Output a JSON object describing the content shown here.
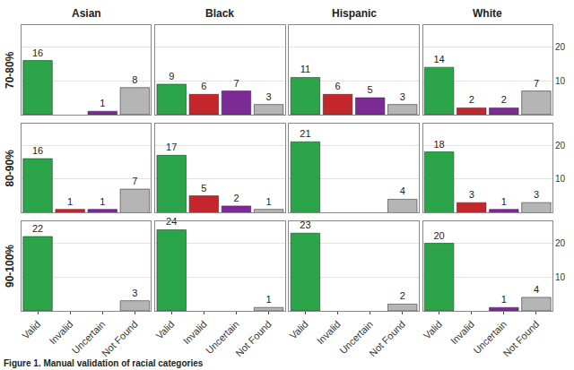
{
  "chart_data": {
    "type": "bar",
    "caption": "Figure 1. Manual validation of racial categories",
    "facet_columns": [
      "Asian",
      "Black",
      "Hispanic",
      "White"
    ],
    "facet_rows": [
      "70-80%",
      "80-90%",
      "90-100%"
    ],
    "categories": [
      "Valid",
      "Invalid",
      "Uncertain",
      "Not Found"
    ],
    "colors": [
      "#2ca54a",
      "#c3262b",
      "#7b2a96",
      "#b5b5b5"
    ],
    "panels": [
      [
        [
          16,
          null,
          1,
          8
        ],
        [
          9,
          6,
          7,
          3
        ],
        [
          11,
          6,
          5,
          3
        ],
        [
          14,
          2,
          2,
          7
        ]
      ],
      [
        [
          16,
          1,
          1,
          7
        ],
        [
          17,
          5,
          2,
          1
        ],
        [
          21,
          null,
          null,
          4
        ],
        [
          18,
          3,
          1,
          3
        ]
      ],
      [
        [
          22,
          null,
          null,
          3
        ],
        [
          24,
          null,
          null,
          1
        ],
        [
          23,
          null,
          null,
          2
        ],
        [
          20,
          null,
          1,
          4
        ]
      ]
    ],
    "ylim": [
      0,
      26.5
    ],
    "yticks": [
      10,
      20
    ],
    "grid": true,
    "data_labels": true
  }
}
